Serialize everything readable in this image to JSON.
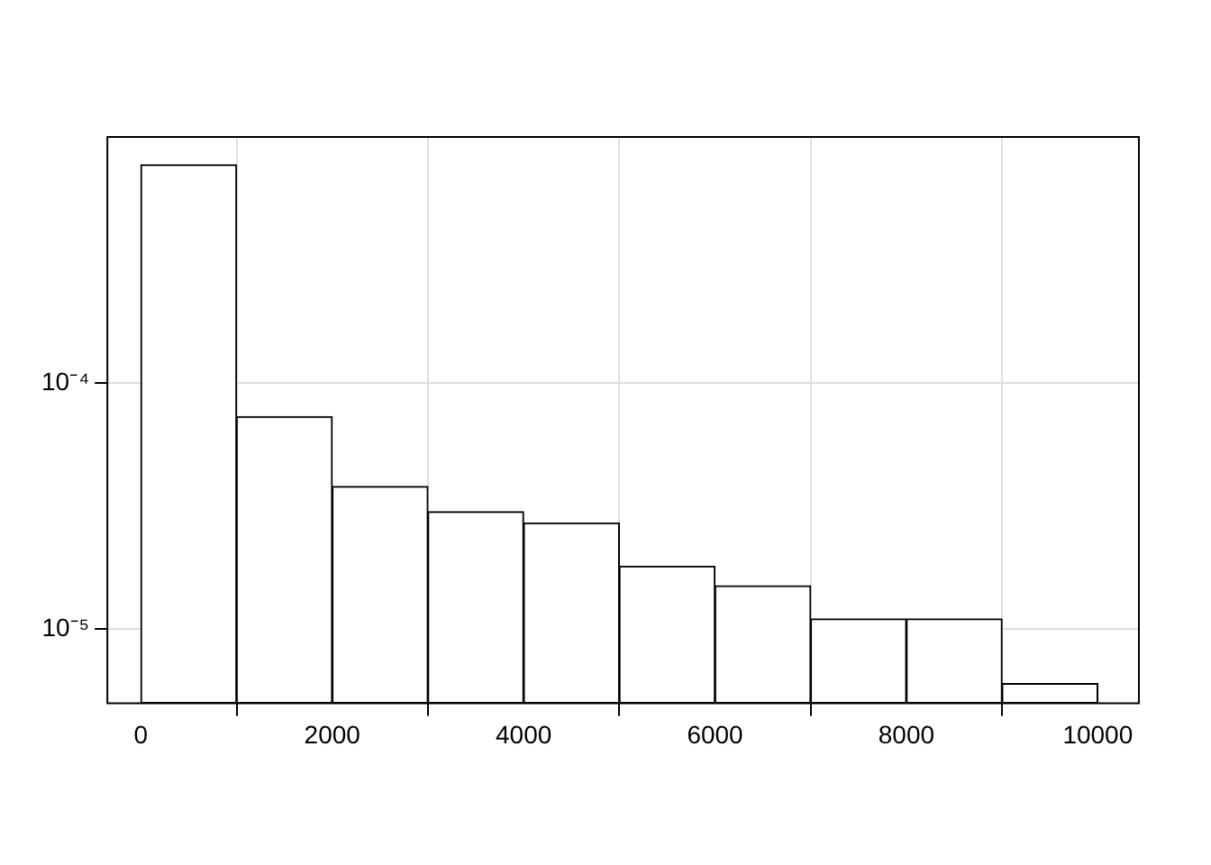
{
  "chart_data": {
    "type": "histogram",
    "bins": [
      0,
      1000,
      2000,
      3000,
      4000,
      5000,
      6000,
      7000,
      8000,
      9000,
      10000
    ],
    "values": [
      0.00077,
      7.3e-05,
      3.8e-05,
      3e-05,
      2.7e-05,
      1.8e-05,
      1.5e-05,
      1.1e-05,
      1.1e-05,
      6e-06
    ],
    "color": "#ffffff",
    "log": "y",
    "xlim": [
      -350,
      10430
    ],
    "xticks": [
      0,
      2000,
      4000,
      6000,
      8000,
      10000
    ],
    "ylim": [
      5e-06,
      0.001
    ],
    "yticks": [
      {
        "value": 0.0001,
        "label": "10⁻⁴"
      },
      {
        "value": 1e-05,
        "label": "10⁻⁵"
      }
    ],
    "grid": true,
    "legend": false
  }
}
